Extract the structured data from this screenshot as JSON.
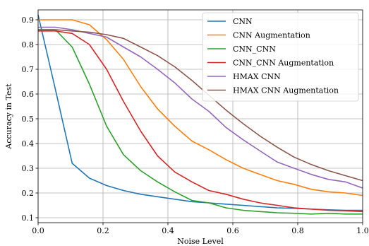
{
  "chart_data": {
    "type": "line",
    "title": "",
    "xlabel": "Noise Level",
    "ylabel": "Accuracy in Test",
    "xlim": [
      0.0,
      1.0
    ],
    "ylim": [
      0.08,
      0.94
    ],
    "xticks": [
      "0.0",
      "0.2",
      "0.4",
      "0.6",
      "0.8",
      "1.0"
    ],
    "yticks": [
      "0.1",
      "0.2",
      "0.3",
      "0.4",
      "0.5",
      "0.6",
      "0.7",
      "0.8",
      "0.9"
    ],
    "grid": true,
    "legend_position": "top-right",
    "x": [
      0.0,
      0.053,
      0.105,
      0.158,
      0.211,
      0.263,
      0.316,
      0.368,
      0.421,
      0.474,
      0.526,
      0.579,
      0.632,
      0.684,
      0.737,
      0.789,
      0.842,
      0.895,
      0.947,
      1.0
    ],
    "series": [
      {
        "name": "CNN",
        "color": "#1f77b4",
        "values": [
          0.92,
          0.62,
          0.32,
          0.26,
          0.23,
          0.21,
          0.195,
          0.185,
          0.175,
          0.165,
          0.16,
          0.155,
          0.15,
          0.145,
          0.14,
          0.138,
          0.135,
          0.132,
          0.13,
          0.13
        ]
      },
      {
        "name": "CNN Augmentation",
        "color": "#ff7f0e",
        "values": [
          0.9,
          0.9,
          0.9,
          0.88,
          0.82,
          0.74,
          0.63,
          0.54,
          0.47,
          0.41,
          0.375,
          0.335,
          0.3,
          0.275,
          0.25,
          0.235,
          0.215,
          0.205,
          0.2,
          0.19
        ]
      },
      {
        "name": "CNN_CNN",
        "color": "#2ca02c",
        "values": [
          0.86,
          0.86,
          0.79,
          0.64,
          0.47,
          0.355,
          0.29,
          0.245,
          0.205,
          0.17,
          0.16,
          0.14,
          0.13,
          0.125,
          0.12,
          0.118,
          0.115,
          0.118,
          0.115,
          0.115
        ]
      },
      {
        "name": "CNN_CNN Augmentation",
        "color": "#d62728",
        "values": [
          0.855,
          0.855,
          0.845,
          0.8,
          0.7,
          0.57,
          0.45,
          0.35,
          0.285,
          0.245,
          0.21,
          0.195,
          0.175,
          0.16,
          0.15,
          0.14,
          0.135,
          0.13,
          0.128,
          0.125
        ]
      },
      {
        "name": "HMAX CNN",
        "color": "#9467bd",
        "values": [
          0.87,
          0.87,
          0.86,
          0.845,
          0.83,
          0.79,
          0.75,
          0.7,
          0.645,
          0.58,
          0.53,
          0.465,
          0.415,
          0.37,
          0.325,
          0.3,
          0.275,
          0.255,
          0.245,
          0.22
        ]
      },
      {
        "name": "HMAX CNN Augmentation",
        "color": "#8c564b",
        "values": [
          0.86,
          0.86,
          0.855,
          0.85,
          0.84,
          0.825,
          0.79,
          0.755,
          0.71,
          0.655,
          0.595,
          0.535,
          0.48,
          0.43,
          0.385,
          0.345,
          0.315,
          0.29,
          0.27,
          0.25
        ]
      }
    ]
  }
}
